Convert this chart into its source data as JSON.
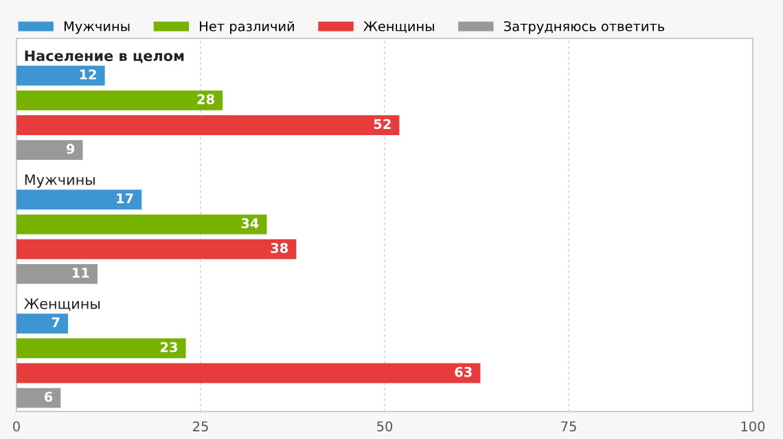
{
  "chart_data": {
    "type": "bar",
    "orientation": "horizontal",
    "categories": [
      "Население в целом",
      "Мужчины",
      "Женщины"
    ],
    "series": [
      {
        "name": "Мужчины",
        "color": "#3d95d2",
        "values": [
          12,
          17,
          7
        ]
      },
      {
        "name": "Нет различий",
        "color": "#78b200",
        "values": [
          28,
          34,
          23
        ]
      },
      {
        "name": "Женщины",
        "color": "#e63c3c",
        "values": [
          52,
          38,
          63
        ]
      },
      {
        "name": "Затрудняюсь ответить",
        "color": "#999999",
        "values": [
          9,
          11,
          6
        ]
      }
    ],
    "xlim": [
      0,
      100
    ],
    "xticks": [
      0,
      25,
      50,
      75,
      100
    ],
    "grid": "x",
    "legend": "top",
    "data_labels": true
  }
}
